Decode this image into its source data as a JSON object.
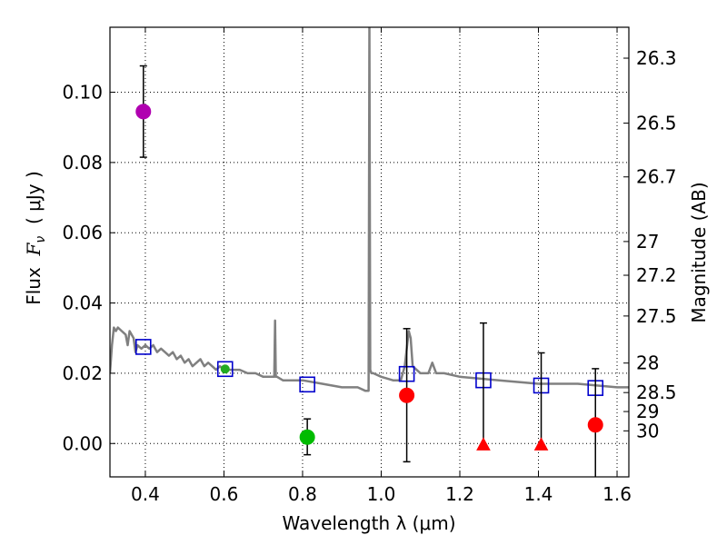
{
  "chart_data": {
    "type": "scatter",
    "xlabel": "Wavelength  λ (μm)",
    "ylabel_prefix": "Flux  ",
    "ylabel_symbol": "F",
    "ylabel_subscript": "ν",
    "ylabel_suffix": "  ( μJy )",
    "ylabel_right": "Magnitude (AB)",
    "xlim": [
      0.31,
      1.63
    ],
    "ylim": [
      -0.0095,
      0.1185
    ],
    "x_ticks": [
      0.4,
      0.6,
      0.8,
      1.0,
      1.2,
      1.4,
      1.6
    ],
    "x_tick_labels": [
      "0.4",
      "0.6",
      "0.8",
      "1.0",
      "1.2",
      "1.4",
      "1.6"
    ],
    "y_ticks": [
      0.0,
      0.02,
      0.04,
      0.06,
      0.08,
      0.1
    ],
    "y_tick_labels": [
      "0.00",
      "0.02",
      "0.04",
      "0.06",
      "0.08",
      "0.10"
    ],
    "mag_ticks": [
      {
        "label": "26.3",
        "flux": 0.1097
      },
      {
        "label": "26.5",
        "flux": 0.0912
      },
      {
        "label": "26.7",
        "flux": 0.0759
      },
      {
        "label": "27",
        "flux": 0.0575
      },
      {
        "label": "27.2",
        "flux": 0.0479
      },
      {
        "label": "27.5",
        "flux": 0.0363
      },
      {
        "label": "28",
        "flux": 0.0229
      },
      {
        "label": "28.5",
        "flux": 0.0145
      },
      {
        "label": "29",
        "flux": 0.0091
      },
      {
        "label": "30",
        "flux": 0.0036
      }
    ],
    "grid": true,
    "series": [
      {
        "name": "template_spectrum",
        "kind": "line",
        "color": "#808080",
        "x": [
          0.31,
          0.315,
          0.32,
          0.325,
          0.33,
          0.34,
          0.35,
          0.355,
          0.36,
          0.37,
          0.375,
          0.38,
          0.39,
          0.4,
          0.41,
          0.42,
          0.43,
          0.44,
          0.45,
          0.46,
          0.47,
          0.48,
          0.49,
          0.5,
          0.51,
          0.52,
          0.53,
          0.54,
          0.55,
          0.56,
          0.57,
          0.58,
          0.59,
          0.6,
          0.62,
          0.64,
          0.66,
          0.68,
          0.7,
          0.72,
          0.728,
          0.73,
          0.732,
          0.735,
          0.75,
          0.8,
          0.85,
          0.9,
          0.94,
          0.96,
          0.968,
          0.97,
          0.972,
          0.975,
          0.98,
          1.0,
          1.03,
          1.05,
          1.06,
          1.07,
          1.075,
          1.08,
          1.1,
          1.12,
          1.13,
          1.14,
          1.16,
          1.2,
          1.3,
          1.4,
          1.5,
          1.6,
          1.63
        ],
        "y": [
          0.02,
          0.028,
          0.033,
          0.032,
          0.033,
          0.032,
          0.031,
          0.028,
          0.032,
          0.03,
          0.026,
          0.028,
          0.027,
          0.028,
          0.027,
          0.028,
          0.026,
          0.027,
          0.026,
          0.025,
          0.026,
          0.024,
          0.025,
          0.023,
          0.024,
          0.022,
          0.023,
          0.024,
          0.022,
          0.023,
          0.022,
          0.021,
          0.022,
          0.021,
          0.021,
          0.021,
          0.02,
          0.02,
          0.019,
          0.019,
          0.019,
          0.035,
          0.019,
          0.019,
          0.018,
          0.018,
          0.017,
          0.016,
          0.016,
          0.015,
          0.015,
          0.12,
          0.021,
          0.02,
          0.02,
          0.019,
          0.018,
          0.018,
          0.022,
          0.032,
          0.03,
          0.022,
          0.02,
          0.02,
          0.023,
          0.02,
          0.02,
          0.019,
          0.018,
          0.017,
          0.017,
          0.016,
          0.016
        ]
      },
      {
        "name": "model_photometry",
        "kind": "open_square",
        "color": "#0000cc",
        "x": [
          0.395,
          0.603,
          0.812,
          1.065,
          1.26,
          1.407,
          1.545
        ],
        "y": [
          0.0275,
          0.0212,
          0.0168,
          0.0198,
          0.018,
          0.0165,
          0.0158
        ]
      },
      {
        "name": "observed_flux",
        "kind": "errorbar",
        "points": [
          {
            "x": 0.395,
            "y": 0.0945,
            "lo": 0.0815,
            "hi": 0.1075,
            "marker": "circle",
            "color": "#b000b0"
          },
          {
            "x": 0.603,
            "y": 0.0212,
            "lo": 0.0212,
            "hi": 0.0212,
            "marker": "circle",
            "color": "#22aa22"
          },
          {
            "x": 0.812,
            "y": 0.0018,
            "lo": -0.0032,
            "hi": 0.007,
            "marker": "circle",
            "color": "#00bb00"
          },
          {
            "x": 1.065,
            "y": 0.0137,
            "lo": -0.0052,
            "hi": 0.0327,
            "marker": "circle",
            "color": "#ff0000"
          },
          {
            "x": 1.26,
            "y": -0.0003,
            "lo": -0.0003,
            "hi": 0.0343,
            "marker": "triangle",
            "color": "#ff0000"
          },
          {
            "x": 1.407,
            "y": -0.0003,
            "lo": -0.0003,
            "hi": 0.0258,
            "marker": "triangle",
            "color": "#ff0000"
          },
          {
            "x": 1.545,
            "y": 0.0053,
            "lo": -0.012,
            "hi": 0.0213,
            "marker": "circle",
            "color": "#ff0000"
          }
        ]
      }
    ]
  }
}
